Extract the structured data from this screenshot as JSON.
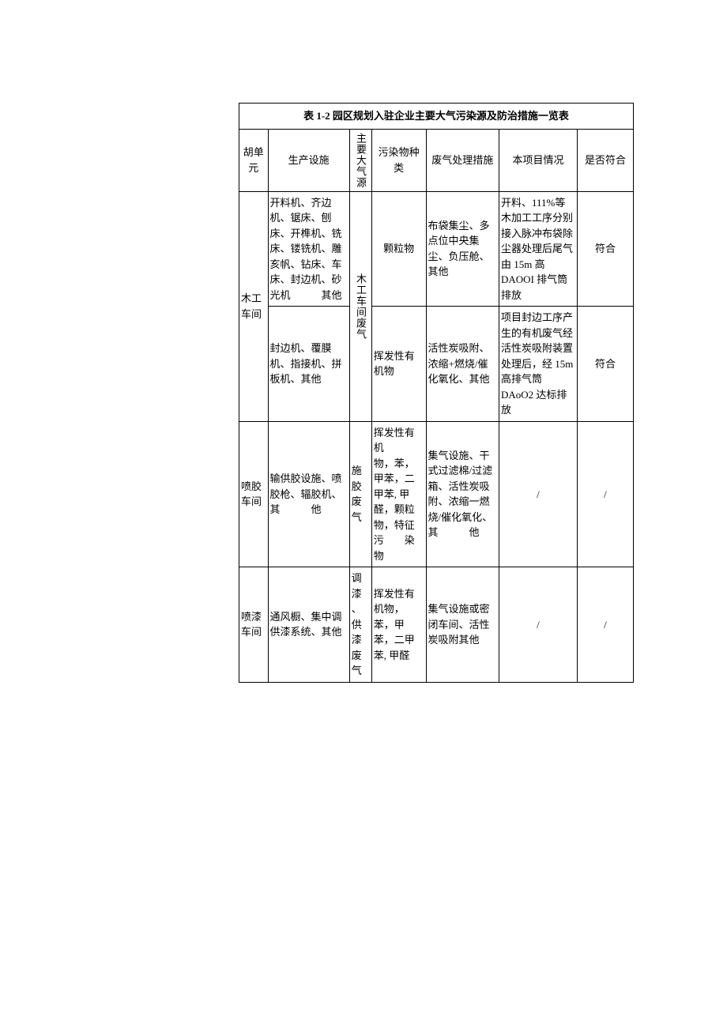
{
  "table": {
    "title": "表 1-2 园区规划入驻企业主要大气污染源及防治措施一览表",
    "headers": {
      "unit": "胡单元",
      "equipment": "生产设施",
      "source": "主要大气源",
      "pollutant": "污染物种类",
      "treatment": "废气处理措施",
      "project": "本项目情况",
      "conform": "是否符合"
    },
    "rows": [
      {
        "unit": "木工车间",
        "source": "木工车间废气",
        "sub": [
          {
            "equipment": "开料机、齐边机、锯床、刨床、开榫机、铣床、镂铣机、雕亥帆、钻床、车床、封边机、砂光机　　　其他",
            "pollutant": "颗粒物",
            "treatment": "布袋集尘、多点位中央集尘、负压舱、其他",
            "project": "开料、111%等木加工工序分别接入脉冲布袋除尘器处理后尾气由 15m 高　DAOOI 排气筒排放",
            "conform": "符合"
          },
          {
            "equipment": "封边机、覆膜机、指接机、拼板机、其他",
            "pollutant": "挥发性有机物",
            "treatment": "活性炭吸附、浓缩+燃烧/催化氧化、其他",
            "project": "项目封边工序产生的有机废气经活性炭吸附装置处理后，经 15m 高排气筒 DAoO2 达标排放",
            "conform": "符合"
          }
        ]
      },
      {
        "unit": "喷胶车间",
        "equipment": "输供胶设施、喷胶枪、辐胶机、其　　　他",
        "source": "施胶废气",
        "pollutant": "挥发性有机　　物，苯，甲苯，二甲苯, 甲醛，颗粒物，特征污　　染物",
        "treatment": "集气设施、干式过滤棉/过滤　　箱、活性炭吸附、浓缩一燃烧/催化氧化、其　　　他",
        "project": "/",
        "conform": "/"
      },
      {
        "unit": "喷漆车间",
        "equipment": "通风橱、集中调供漆系统、其他",
        "source": "调漆、供漆废气",
        "pollutant": "挥发性有机物，苯，甲苯，二甲苯, 甲醛",
        "treatment": "集气设施或密闭车间、活性炭吸附其他",
        "project": "/",
        "conform": "/"
      }
    ]
  }
}
